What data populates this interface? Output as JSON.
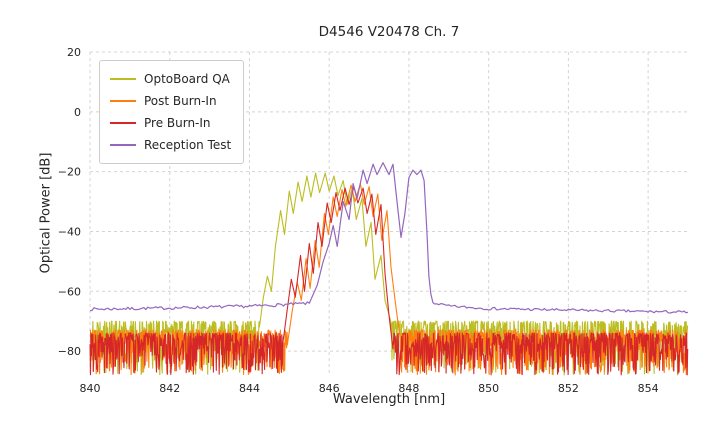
{
  "chart_data": {
    "type": "line",
    "title": "D4546 V20478 Ch. 7",
    "xlabel": "Wavelength [nm]",
    "ylabel": "Optical Power [dB]",
    "xlim": [
      840,
      855
    ],
    "ylim": [
      -88,
      20
    ],
    "xticks": [
      840,
      842,
      844,
      846,
      848,
      850,
      852,
      854
    ],
    "yticks": [
      20,
      0,
      -20,
      -40,
      -60,
      -80
    ],
    "grid": true,
    "legend_position": "upper left",
    "series": [
      {
        "name": "OptoBoard QA",
        "color": "#bcbd22",
        "width": 1.1,
        "seed": 11,
        "noise_segments": [
          {
            "x0": 840,
            "x1": 844.25,
            "top": -70,
            "depth": 18
          },
          {
            "x0": 847.55,
            "x1": 855,
            "top": -70,
            "depth": 18
          }
        ],
        "peak_points": [
          [
            844.25,
            -72
          ],
          [
            844.35,
            -62
          ],
          [
            844.45,
            -55
          ],
          [
            844.55,
            -60
          ],
          [
            844.65,
            -45
          ],
          [
            844.78,
            -33
          ],
          [
            844.88,
            -41
          ],
          [
            845.0,
            -26.5
          ],
          [
            845.1,
            -34
          ],
          [
            845.22,
            -23.5
          ],
          [
            845.32,
            -30
          ],
          [
            845.44,
            -21.5
          ],
          [
            845.54,
            -28.5
          ],
          [
            845.66,
            -20.5
          ],
          [
            845.76,
            -27
          ],
          [
            845.9,
            -20.5
          ],
          [
            846.0,
            -26.5
          ],
          [
            846.12,
            -21.5
          ],
          [
            846.22,
            -28
          ],
          [
            846.35,
            -23
          ],
          [
            846.45,
            -31
          ],
          [
            846.58,
            -25.5
          ],
          [
            846.68,
            -36
          ],
          [
            846.82,
            -29
          ],
          [
            846.92,
            -45
          ],
          [
            847.05,
            -37
          ],
          [
            847.15,
            -56
          ],
          [
            847.3,
            -48
          ],
          [
            847.4,
            -63
          ],
          [
            847.55,
            -72
          ]
        ]
      },
      {
        "name": "Post Burn-In",
        "color": "#ff7f0e",
        "width": 1.1,
        "seed": 23,
        "noise_segments": [
          {
            "x0": 840,
            "x1": 844.95,
            "top": -73,
            "depth": 15
          },
          {
            "x0": 847.78,
            "x1": 855,
            "top": -73,
            "depth": 15
          }
        ],
        "peak_points": [
          [
            844.95,
            -78
          ],
          [
            845.08,
            -66
          ],
          [
            845.2,
            -57
          ],
          [
            845.3,
            -63
          ],
          [
            845.42,
            -49
          ],
          [
            845.52,
            -59
          ],
          [
            845.65,
            -43
          ],
          [
            845.75,
            -52
          ],
          [
            845.88,
            -34
          ],
          [
            845.98,
            -41
          ],
          [
            846.1,
            -28.5
          ],
          [
            846.2,
            -35
          ],
          [
            846.32,
            -26
          ],
          [
            846.42,
            -31.5
          ],
          [
            846.55,
            -24.5
          ],
          [
            846.65,
            -30
          ],
          [
            846.78,
            -24
          ],
          [
            846.88,
            -31
          ],
          [
            847.0,
            -25
          ],
          [
            847.1,
            -35
          ],
          [
            847.22,
            -27.5
          ],
          [
            847.32,
            -43
          ],
          [
            847.45,
            -33
          ],
          [
            847.55,
            -52
          ],
          [
            847.68,
            -66
          ],
          [
            847.78,
            -78
          ]
        ]
      },
      {
        "name": "Pre Burn-In",
        "color": "#d62728",
        "width": 1.1,
        "seed": 37,
        "noise_segments": [
          {
            "x0": 840,
            "x1": 844.85,
            "top": -74,
            "depth": 14
          },
          {
            "x0": 847.6,
            "x1": 855,
            "top": -74,
            "depth": 14
          }
        ],
        "peak_points": [
          [
            844.85,
            -76
          ],
          [
            844.95,
            -66
          ],
          [
            845.05,
            -56
          ],
          [
            845.15,
            -62
          ],
          [
            845.28,
            -48
          ],
          [
            845.38,
            -60
          ],
          [
            845.5,
            -44
          ],
          [
            845.6,
            -54
          ],
          [
            845.72,
            -37
          ],
          [
            845.82,
            -45
          ],
          [
            845.95,
            -30.5
          ],
          [
            846.05,
            -37
          ],
          [
            846.17,
            -27
          ],
          [
            846.27,
            -33
          ],
          [
            846.4,
            -25.5
          ],
          [
            846.5,
            -31
          ],
          [
            846.62,
            -25
          ],
          [
            846.72,
            -30.5
          ],
          [
            846.85,
            -25.5
          ],
          [
            846.95,
            -34
          ],
          [
            847.07,
            -27.5
          ],
          [
            847.17,
            -41
          ],
          [
            847.3,
            -31
          ],
          [
            847.4,
            -54
          ],
          [
            847.5,
            -68
          ],
          [
            847.6,
            -77
          ]
        ]
      },
      {
        "name": "Reception Test",
        "color": "#9467bd",
        "width": 1.2,
        "seed": 7,
        "smooth_segments": [
          {
            "x0": 840,
            "x1": 845.5,
            "jitter": 1.0,
            "anchors": [
              [
                840,
                -66
              ],
              [
                842,
                -65.6
              ],
              [
                844,
                -65
              ],
              [
                845,
                -64.4
              ],
              [
                845.5,
                -64
              ]
            ]
          },
          {
            "x0": 848.6,
            "x1": 855,
            "jitter": 0.9,
            "anchors": [
              [
                848.6,
                -63.8
              ],
              [
                849,
                -65
              ],
              [
                850,
                -65.8
              ],
              [
                852,
                -66.3
              ],
              [
                854,
                -66.8
              ],
              [
                855,
                -67
              ]
            ]
          }
        ],
        "peak_points": [
          [
            845.5,
            -64
          ],
          [
            845.7,
            -58
          ],
          [
            845.85,
            -50
          ],
          [
            846.0,
            -44
          ],
          [
            846.1,
            -38
          ],
          [
            846.2,
            -45
          ],
          [
            846.35,
            -30
          ],
          [
            846.5,
            -36
          ],
          [
            846.6,
            -24
          ],
          [
            846.7,
            -29
          ],
          [
            846.85,
            -19.5
          ],
          [
            846.95,
            -24
          ],
          [
            847.1,
            -17.5
          ],
          [
            847.2,
            -21
          ],
          [
            847.35,
            -17
          ],
          [
            847.5,
            -21
          ],
          [
            847.6,
            -17.5
          ],
          [
            847.7,
            -30
          ],
          [
            847.8,
            -42
          ],
          [
            847.9,
            -34
          ],
          [
            848.0,
            -22
          ],
          [
            848.1,
            -19.5
          ],
          [
            848.2,
            -21
          ],
          [
            848.3,
            -19.5
          ],
          [
            848.38,
            -23
          ],
          [
            848.45,
            -40
          ],
          [
            848.5,
            -55
          ],
          [
            848.55,
            -61
          ],
          [
            848.6,
            -63.8
          ]
        ]
      }
    ]
  }
}
